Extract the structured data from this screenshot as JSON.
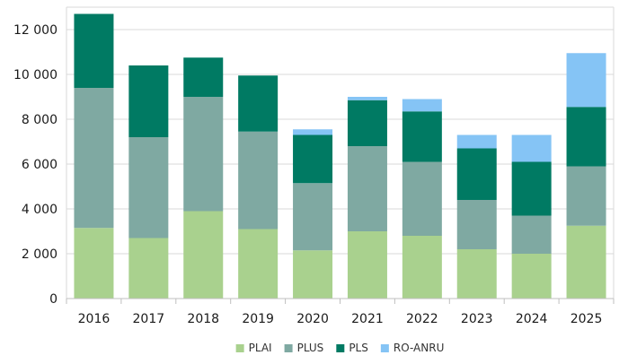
{
  "chart_data": {
    "type": "bar",
    "stacked": true,
    "title": "",
    "xlabel": "",
    "ylabel": "",
    "ylim": [
      0,
      13000
    ],
    "y_ticks": [
      0,
      2000,
      4000,
      6000,
      8000,
      10000,
      12000
    ],
    "y_tick_labels": [
      "0",
      "2 000",
      "4 000",
      "6 000",
      "8 000",
      "10 000",
      "12 000"
    ],
    "grid": true,
    "legend_position": "bottom",
    "categories": [
      "2016",
      "2017",
      "2018",
      "2019",
      "2020",
      "2021",
      "2022",
      "2023",
      "2024",
      "2025"
    ],
    "series": [
      {
        "name": "PLAI",
        "color": "#a9d18e",
        "values": [
          3150,
          2700,
          3900,
          3100,
          2150,
          3000,
          2800,
          2200,
          2000,
          3250
        ]
      },
      {
        "name": "PLUS",
        "color": "#7fa9a2",
        "values": [
          6250,
          4500,
          5100,
          4350,
          3000,
          3800,
          3300,
          2200,
          1700,
          2650
        ]
      },
      {
        "name": "PLS",
        "color": "#007a63",
        "values": [
          3300,
          3200,
          1750,
          2500,
          2150,
          2050,
          2250,
          2300,
          2400,
          2650
        ]
      },
      {
        "name": "RO-ANRU",
        "color": "#85c4f5",
        "values": [
          0,
          0,
          0,
          0,
          250,
          150,
          550,
          600,
          1200,
          2400
        ]
      }
    ]
  }
}
